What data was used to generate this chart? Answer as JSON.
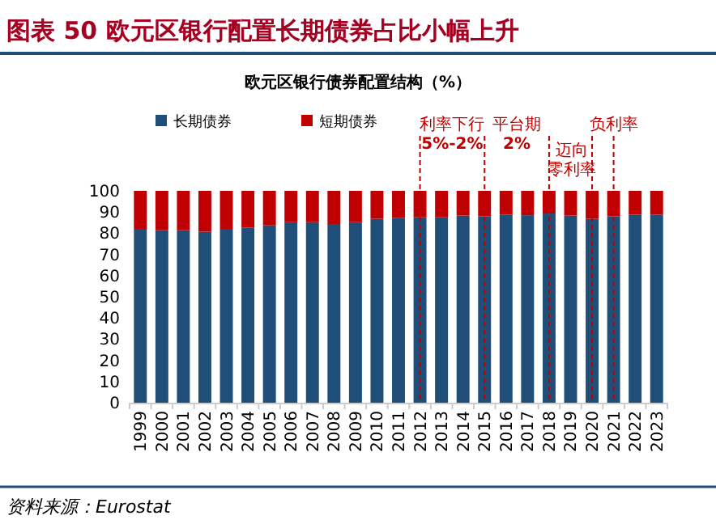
{
  "chart_data": {
    "type": "bar",
    "title": "图表 50 欧元区银行配置长期债券占比小幅上升",
    "subtitle": "欧元区银行债券配置结构（%）",
    "categories": [
      "1999",
      "2000",
      "2001",
      "2002",
      "2003",
      "2004",
      "2005",
      "2006",
      "2007",
      "2008",
      "2009",
      "2010",
      "2011",
      "2012",
      "2013",
      "2014",
      "2015",
      "2016",
      "2017",
      "2018",
      "2019",
      "2020",
      "2021",
      "2022",
      "2023"
    ],
    "series": [
      {
        "name": "长期债券",
        "color": "#1f4e79",
        "values": [
          81.7,
          81.4,
          81.4,
          80.7,
          81.7,
          82.7,
          83.7,
          85.2,
          85.2,
          84,
          85.2,
          86.8,
          87.3,
          87.5,
          87.5,
          88.3,
          88,
          88.8,
          88.5,
          89.3,
          88.3,
          86.8,
          88,
          88.8,
          88.8
        ]
      },
      {
        "name": "短期债券",
        "color": "#c00000",
        "values": [
          18.3,
          18.6,
          18.6,
          19.3,
          18.3,
          17.3,
          16.3,
          14.8,
          14.8,
          16,
          14.8,
          13.2,
          12.7,
          12.5,
          12.5,
          11.7,
          12,
          11.2,
          11.5,
          10.7,
          11.7,
          13.2,
          12,
          11.2,
          11.2
        ]
      }
    ],
    "stacked": true,
    "ylim": [
      0,
      100
    ],
    "yticks": [
      0,
      10,
      20,
      30,
      40,
      50,
      60,
      70,
      80,
      90,
      100
    ],
    "grid": false,
    "legend": "top left",
    "ref_lines": [
      {
        "axis": "x",
        "value": "2012",
        "label": [
          "利率下行",
          "5%-2%"
        ],
        "color": "#c00000",
        "line_style": "dashed"
      },
      {
        "axis": "x",
        "value": "2015",
        "label": [
          "平台期",
          "2%"
        ],
        "color": "#c00000",
        "line_style": "dashed"
      },
      {
        "axis": "x",
        "value": "2018",
        "label": [
          "迈向",
          "零利率"
        ],
        "color": "#c00000",
        "line_style": "dashed"
      },
      {
        "axis": "x",
        "value": "2020",
        "label": null,
        "color": "#c00000",
        "line_style": "dashed"
      },
      {
        "axis": "x",
        "value": "2021",
        "label": [
          "负利率"
        ],
        "color": "#c00000",
        "line_style": "dashed"
      }
    ],
    "annotations": [
      "资料来源：Eurostat"
    ]
  }
}
